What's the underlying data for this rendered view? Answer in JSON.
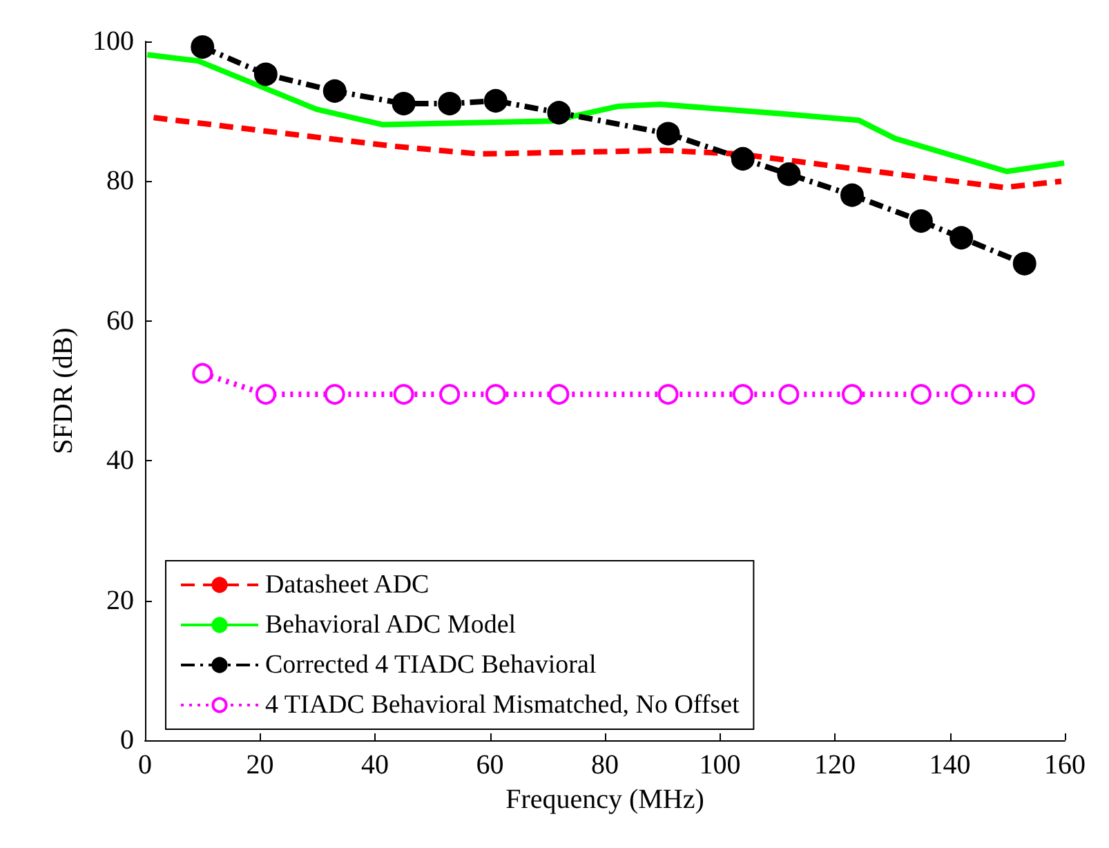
{
  "chart_data": {
    "type": "line",
    "xlabel": "Frequency (MHz)",
    "ylabel": "SFDR (dB)",
    "xlim": [
      0,
      160
    ],
    "xticks": [
      0,
      20,
      40,
      60,
      80,
      100,
      120,
      140,
      160
    ],
    "ylim": [
      0,
      100
    ],
    "yticks": [
      0,
      20,
      40,
      60,
      80,
      100
    ],
    "grid": false,
    "legend": "bottom left",
    "series": [
      {
        "name": "Datasheet ADC",
        "color": "#ff0000",
        "line_style": "dashed",
        "marker": "none",
        "x": [
          1.5,
          29.8,
          43.4,
          58.1,
          90.7,
          103.3,
          124.2,
          149.4,
          159.4
        ],
        "values": [
          89.1,
          86.3,
          85.0,
          83.9,
          84.4,
          83.9,
          81.7,
          79.1,
          80.0
        ]
      },
      {
        "name": "Behavioral ADC Model",
        "color": "#00ff00",
        "line_style": "solid",
        "marker": "none",
        "x": [
          0.4,
          9.3,
          29.8,
          41.3,
          70.7,
          82.2,
          89.6,
          111.6,
          124.2,
          130.5,
          149.9,
          159.9
        ],
        "values": [
          98.1,
          97.2,
          90.3,
          88.1,
          88.6,
          90.7,
          91.0,
          89.6,
          88.7,
          86.1,
          81.4,
          82.6
        ]
      },
      {
        "name": "Corrected 4 TIADC Behavioral",
        "color": "#000000",
        "line_style": "dashdot",
        "marker": "circle",
        "x": [
          10,
          21,
          33,
          45,
          53,
          61,
          72,
          91,
          104,
          112,
          123,
          135,
          142,
          153
        ],
        "values": [
          99.2,
          95.3,
          92.9,
          91.1,
          91.1,
          91.5,
          89.8,
          86.8,
          83.2,
          81.0,
          78.0,
          74.3,
          71.9,
          68.2
        ]
      },
      {
        "name": "4 TIADC Behavioral Mismatched, No Offset",
        "color": "#ff00ff",
        "line_style": "dotted",
        "marker": "circle",
        "x": [
          10,
          21,
          33,
          45,
          53,
          61,
          72,
          91,
          104,
          112,
          123,
          135,
          142,
          153
        ],
        "values": [
          52.5,
          49.5,
          49.5,
          49.5,
          49.5,
          49.5,
          49.5,
          49.5,
          49.5,
          49.5,
          49.5,
          49.5,
          49.5,
          49.5
        ]
      }
    ]
  }
}
